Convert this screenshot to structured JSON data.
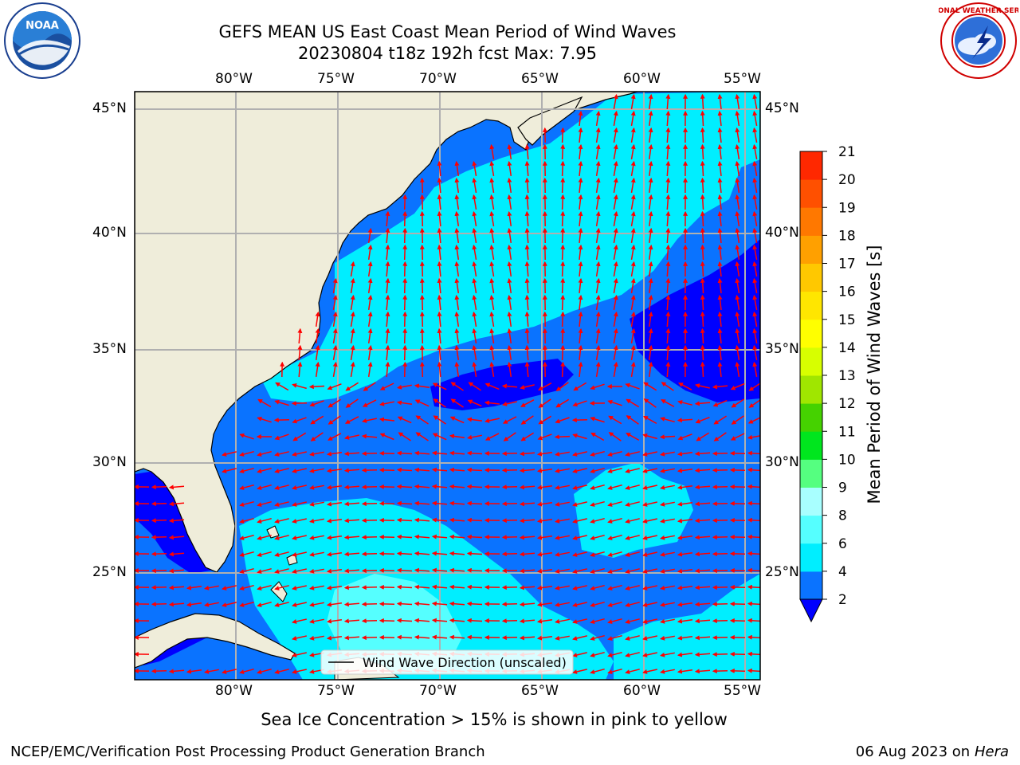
{
  "header": {
    "title_line1": "GEFS MEAN US East Coast Mean Period of Wind Waves",
    "title_line2": "20230804 t18z 192h fcst   Max: 7.95"
  },
  "logos": {
    "noaa_badge": "NOAA",
    "noaa_ring": "NATIONAL OCEANIC AND ATMOSPHERIC ADMINISTRATION · U.S. DEPARTMENT OF COMMERCE",
    "nws_ring": "NATIONAL WEATHER SERVICE"
  },
  "map": {
    "lon_labels": [
      "80°W",
      "75°W",
      "70°W",
      "65°W",
      "60°W",
      "55°W"
    ],
    "lat_labels": [
      "45°N",
      "40°N",
      "35°N",
      "30°N",
      "25°N"
    ],
    "legend_label": "Wind Wave Direction (unscaled)",
    "land_color": "#efedda",
    "arrow_color": "#ff0000",
    "grid_color": "#b0b0b0"
  },
  "colorbar": {
    "label": "Mean Period of Wind Waves [s]",
    "ticks": [
      "2",
      "4",
      "6",
      "8",
      "9",
      "10",
      "11",
      "12",
      "13",
      "14",
      "15",
      "16",
      "17",
      "18",
      "19",
      "20",
      "21"
    ],
    "colors": [
      "#0a73ff",
      "#00eeff",
      "#55ffff",
      "#a8ffff",
      "#55ff80",
      "#00e61e",
      "#45d200",
      "#a0e600",
      "#d7ff00",
      "#ffff00",
      "#ffe600",
      "#ffc800",
      "#ffa000",
      "#ff7800",
      "#ff5000",
      "#ff2800",
      "#ff0000"
    ],
    "extend_color": "#0000ff"
  },
  "footer": {
    "note": "Sea Ice Concentration > 15% is shown in pink to yellow",
    "left": "NCEP/EMC/Verification Post Processing Product Generation Branch",
    "date": "06 Aug 2023 on",
    "machine": "Hera"
  }
}
